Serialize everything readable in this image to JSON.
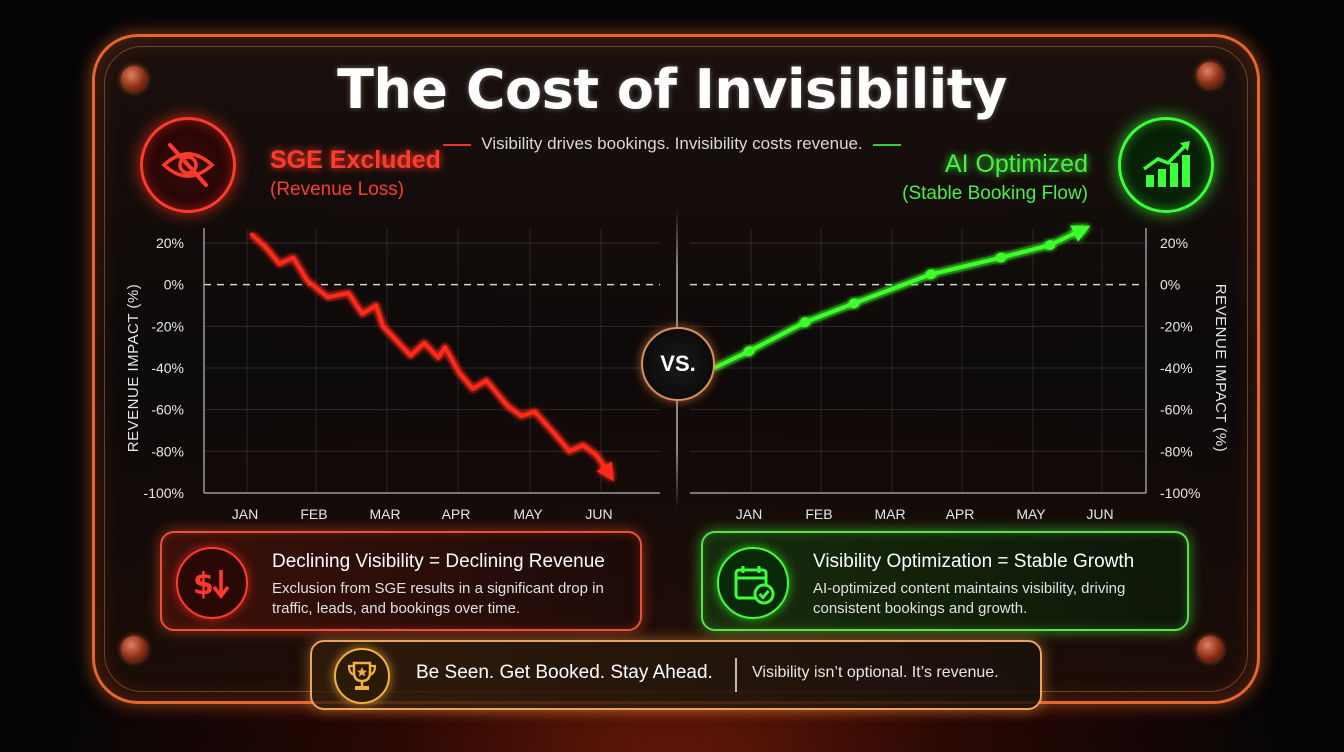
{
  "title": "The Cost of Invisibility",
  "subtitle": "Visibility drives bookings. Invisibility costs revenue.",
  "vs_label": "VS.",
  "left_panel": {
    "heading": "SGE Excluded",
    "subheading": "(Revenue Loss)",
    "icon": "crossed-eye-icon",
    "color": "#ff3b2b",
    "box_title": "Declining Visibility = Declining Revenue",
    "box_text": "Exclusion from SGE results in a significant drop in traffic, leads, and bookings over time.",
    "box_icon": "dollar-down-icon"
  },
  "right_panel": {
    "heading": "AI Optimized",
    "subheading": "(Stable Booking Flow)",
    "icon": "growth-bars-icon",
    "color": "#47f23f",
    "box_title": "Visibility Optimization = Stable Growth",
    "box_text": "AI-optimized content maintains visibility, driving consistent bookings and growth.",
    "box_icon": "calendar-check-icon"
  },
  "footer": {
    "main": "Be Seen. Get Booked. Stay Ahead.",
    "sub": "Visibility isn’t optional. It’s revenue.",
    "icon": "trophy-icon"
  },
  "chart_data": [
    {
      "type": "line",
      "title": "SGE Excluded",
      "ylabel": "REVENUE IMPACT (%)",
      "ylim": [
        -100,
        20
      ],
      "y_ticks": [
        "20%",
        "0%",
        "-20%",
        "-40%",
        "-60%",
        "-80%",
        "-100%"
      ],
      "categories": [
        "JAN",
        "FEB",
        "MAR",
        "APR",
        "MAY",
        "JUN"
      ],
      "grid": true,
      "baseline": 0,
      "color": "#ff2a1a",
      "x": [
        0.1,
        0.3,
        0.5,
        0.7,
        0.9,
        1.2,
        1.5,
        1.7,
        1.9,
        2.0,
        2.2,
        2.4,
        2.6,
        2.8,
        2.9,
        3.1,
        3.3,
        3.5,
        3.7,
        3.8,
        4.0,
        4.2,
        4.5,
        4.7,
        4.9,
        5.1,
        5.3
      ],
      "y": [
        24,
        18,
        10,
        13,
        2,
        -6,
        -4,
        -14,
        -10,
        -20,
        -27,
        -34,
        -28,
        -35,
        -30,
        -42,
        -50,
        -46,
        -54,
        -58,
        -63,
        -61,
        -72,
        -80,
        -77,
        -82,
        -92
      ]
    },
    {
      "type": "line",
      "title": "AI Optimized",
      "ylabel": "REVENUE IMPACT (%)",
      "ylim": [
        -100,
        20
      ],
      "y_ticks": [
        "20%",
        "0%",
        "-20%",
        "-40%",
        "-60%",
        "-80%",
        "-100%"
      ],
      "categories": [
        "JAN",
        "FEB",
        "MAR",
        "APR",
        "MAY",
        "JUN"
      ],
      "grid": true,
      "baseline": 0,
      "color": "#3cff2a",
      "x": [
        -0.5,
        0.0,
        0.8,
        1.5,
        2.6,
        3.6,
        4.3,
        4.8
      ],
      "y": [
        -40,
        -32,
        -18,
        -9,
        5,
        13,
        19,
        27
      ],
      "markers": [
        false,
        true,
        true,
        true,
        true,
        true,
        true,
        false
      ]
    }
  ]
}
